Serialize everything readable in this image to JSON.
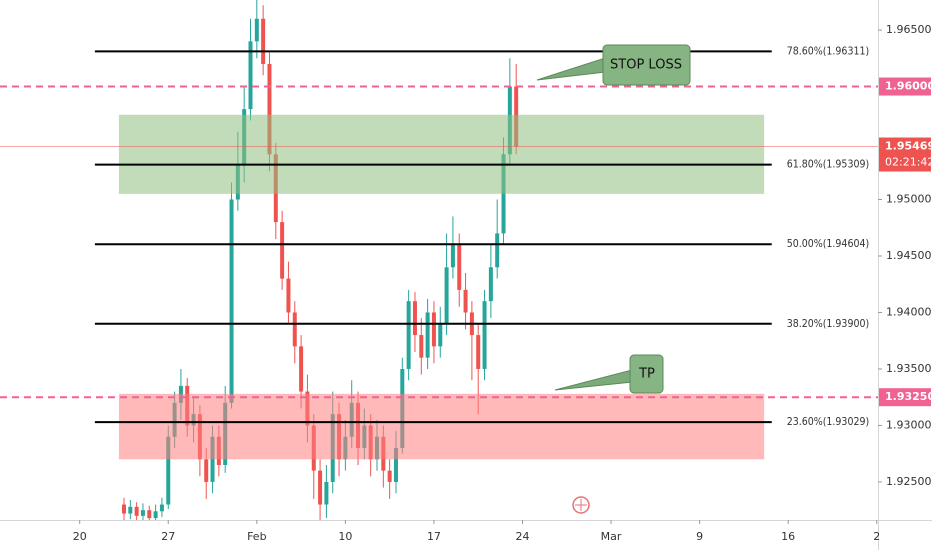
{
  "chart_data": {
    "type": "candlestick",
    "up_color": "#26a69a",
    "down_color": "#ef5350",
    "x": [
      23.5,
      24,
      24.5,
      25,
      25.5,
      26,
      26.5,
      27,
      27.5,
      28,
      28.5,
      29,
      29.5,
      30,
      30.5,
      31,
      31.5,
      32,
      32.5,
      33,
      33.5,
      34,
      34.5,
      35,
      35.5,
      36,
      36.5,
      37,
      37.5,
      38,
      38.5,
      39,
      39.5,
      40,
      40.5,
      41,
      41.5,
      42,
      42.5,
      43,
      43.5,
      44,
      44.5,
      45,
      45.5,
      46,
      46.5,
      47,
      47.5,
      48,
      48.5,
      49,
      49.5,
      50,
      50.5,
      51,
      51.5,
      52,
      52.5,
      53,
      53.5,
      54,
      54.5
    ],
    "open": [
      1.923,
      1.9222,
      1.9228,
      1.922,
      1.9225,
      1.9218,
      1.9224,
      1.923,
      1.929,
      1.932,
      1.9335,
      1.93,
      1.931,
      1.927,
      1.925,
      1.929,
      1.9265,
      1.932,
      1.95,
      1.953,
      1.958,
      1.964,
      1.966,
      1.962,
      1.954,
      1.948,
      1.943,
      1.94,
      1.937,
      1.933,
      1.93,
      1.926,
      1.923,
      1.925,
      1.931,
      1.927,
      1.929,
      1.932,
      1.928,
      1.93,
      1.927,
      1.929,
      1.926,
      1.925,
      1.928,
      1.935,
      1.941,
      1.938,
      1.936,
      1.94,
      1.937,
      1.939,
      1.944,
      1.946,
      1.942,
      1.94,
      1.938,
      1.935,
      1.941,
      1.944,
      1.947,
      1.954,
      1.96
    ],
    "high": [
      1.9236,
      1.9234,
      1.9232,
      1.9231,
      1.9229,
      1.923,
      1.9236,
      1.93,
      1.933,
      1.935,
      1.9342,
      1.9325,
      1.9318,
      1.928,
      1.93,
      1.93,
      1.9335,
      1.9515,
      1.956,
      1.96,
      1.966,
      1.9677,
      1.9672,
      1.963,
      1.955,
      1.949,
      1.9445,
      1.941,
      1.938,
      1.9345,
      1.931,
      1.927,
      1.9265,
      1.933,
      1.932,
      1.9305,
      1.934,
      1.933,
      1.9315,
      1.931,
      1.9305,
      1.93,
      1.927,
      1.9295,
      1.936,
      1.942,
      1.9418,
      1.9395,
      1.9412,
      1.941,
      1.9405,
      1.947,
      1.9485,
      1.947,
      1.9435,
      1.941,
      1.939,
      1.942,
      1.946,
      1.95,
      1.9555,
      1.9625,
      1.962
    ],
    "low": [
      1.9216,
      1.9217,
      1.9216,
      1.9216,
      1.9216,
      1.9216,
      1.9219,
      1.9226,
      1.928,
      1.9305,
      1.929,
      1.9285,
      1.9255,
      1.9235,
      1.924,
      1.9255,
      1.9258,
      1.9315,
      1.949,
      1.9515,
      1.957,
      1.9625,
      1.961,
      1.9525,
      1.9465,
      1.942,
      1.939,
      1.9355,
      1.9315,
      1.9285,
      1.9235,
      1.9216,
      1.9218,
      1.924,
      1.9255,
      1.926,
      1.928,
      1.9265,
      1.927,
      1.9255,
      1.926,
      1.9245,
      1.9235,
      1.924,
      1.9275,
      1.934,
      1.9365,
      1.9345,
      1.935,
      1.9355,
      1.936,
      1.938,
      1.943,
      1.9405,
      1.9385,
      1.934,
      1.931,
      1.934,
      1.9395,
      1.943,
      1.946,
      1.953,
      1.954
    ],
    "close": [
      1.9222,
      1.9228,
      1.922,
      1.9225,
      1.9218,
      1.9224,
      1.923,
      1.929,
      1.932,
      1.9335,
      1.93,
      1.931,
      1.927,
      1.925,
      1.929,
      1.9265,
      1.932,
      1.95,
      1.953,
      1.958,
      1.964,
      1.966,
      1.962,
      1.954,
      1.948,
      1.943,
      1.94,
      1.937,
      1.933,
      1.93,
      1.926,
      1.923,
      1.925,
      1.931,
      1.927,
      1.929,
      1.932,
      1.928,
      1.93,
      1.927,
      1.929,
      1.926,
      1.925,
      1.928,
      1.935,
      1.941,
      1.938,
      1.936,
      1.94,
      1.937,
      1.939,
      1.944,
      1.946,
      1.942,
      1.94,
      1.938,
      1.935,
      1.941,
      1.944,
      1.947,
      1.954,
      1.96,
      1.95469
    ],
    "xlim": [
      13.7,
      83.1
    ],
    "ylim": [
      1.92163,
      1.96766
    ],
    "xticks": [
      {
        "value": 20,
        "label": "20"
      },
      {
        "value": 27,
        "label": "27"
      },
      {
        "value": 34,
        "label": "Feb"
      },
      {
        "value": 41,
        "label": "10"
      },
      {
        "value": 48,
        "label": "17"
      },
      {
        "value": 55,
        "label": "24"
      },
      {
        "value": 62,
        "label": "Mar"
      },
      {
        "value": 69,
        "label": "9"
      },
      {
        "value": 76,
        "label": "16"
      },
      {
        "value": 83,
        "label": "2"
      }
    ],
    "yticks": [
      {
        "value": 1.925,
        "label": "1.92500"
      },
      {
        "value": 1.93,
        "label": "1.93000"
      },
      {
        "value": 1.935,
        "label": "1.93500"
      },
      {
        "value": 1.94,
        "label": "1.94000"
      },
      {
        "value": 1.945,
        "label": "1.94500"
      },
      {
        "value": 1.95,
        "label": "1.95000"
      },
      {
        "value": 1.965,
        "label": "1.96500"
      }
    ],
    "fib_xrange": [
      21.2,
      74.7
    ],
    "fib_levels": [
      {
        "value": 1.96311,
        "label": "78.60%(1.96311)"
      },
      {
        "value": 1.95309,
        "label": "61.80%(1.95309)"
      },
      {
        "value": 1.94604,
        "label": "50.00%(1.94604)"
      },
      {
        "value": 1.939,
        "label": "38.20%(1.93900)"
      },
      {
        "value": 1.93029,
        "label": "23.60%(1.93029)"
      }
    ],
    "zones": [
      {
        "low": 1.9505,
        "high": 1.9575,
        "x": [
          23.1,
          74.1
        ],
        "color": "#8fbf7f"
      },
      {
        "low": 1.927,
        "high": 1.9328,
        "x": [
          23.1,
          74.1
        ],
        "color": "#ff8080"
      }
    ],
    "hlines": [
      {
        "value": 1.96,
        "label": "1.96000",
        "color": "#f06292"
      },
      {
        "value": 1.9325,
        "label": "1.93250",
        "color": "#f06292"
      }
    ],
    "last": {
      "value": 1.95469,
      "label": "1.95469",
      "countdown": "02:21:42",
      "color": "#ef5350"
    },
    "annotations": [
      {
        "text": "STOP LOSS"
      },
      {
        "text": "TP"
      }
    ]
  }
}
